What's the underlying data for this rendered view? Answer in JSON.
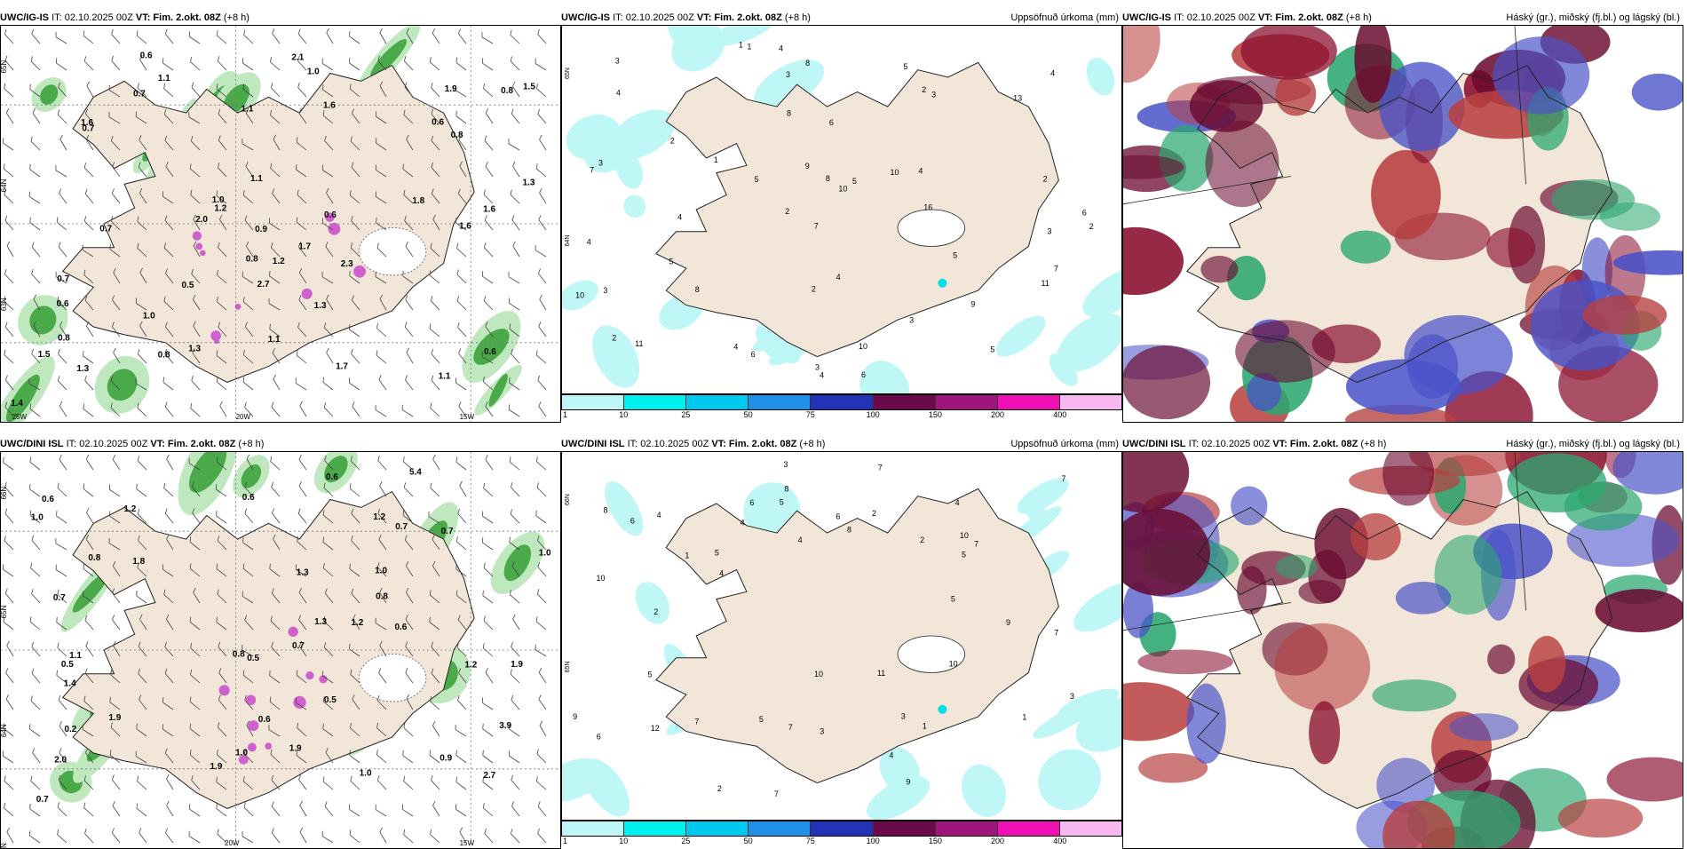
{
  "rows": [
    {
      "model": "UWC/IG-IS",
      "it_label": "IT: 02.10.2025 00Z",
      "vt_label": "VT: Fim. 2.okt. 08Z",
      "lead": "(+8 h)",
      "wind_panel": {
        "lat_labels": [
          "65N",
          "64N",
          "63N"
        ],
        "lon_labels": [
          "25W",
          "20W",
          "15W"
        ],
        "values": [
          "0.7",
          "1.6",
          "1.2",
          "1.1",
          "0.6",
          "0.7",
          "0.6",
          "0.8",
          "0.5",
          "0.8",
          "0.6",
          "1.1",
          "1.6",
          "1.5",
          "1.3",
          "1.0",
          "1.3",
          "0.8",
          "2.1",
          "1.7",
          "0.7",
          "1.0",
          "1.8",
          "1.1",
          "0.8",
          "0.6",
          "1.0",
          "1.5",
          "2.0",
          "1.9",
          "1.7",
          "2.7",
          "1.1",
          "0.6",
          "1.3",
          "1.6",
          "1.2",
          "1.4",
          "0.9",
          "2.3",
          "0.8",
          "1.1",
          "1.3",
          "0.7",
          "1.6"
        ]
      },
      "precip_panel": {
        "title": "Uppsöfnuð úrkoma (mm)",
        "values": [
          "5",
          "3",
          "8",
          "10",
          "2",
          "6",
          "5",
          "1",
          "2",
          "3",
          "2",
          "4",
          "9",
          "10",
          "5",
          "11",
          "16",
          "7",
          "3",
          "2",
          "4",
          "5",
          "6",
          "3",
          "8",
          "2",
          "4",
          "9",
          "10",
          "11",
          "3",
          "4",
          "2",
          "3",
          "4",
          "1",
          "6",
          "7",
          "5",
          "8",
          "4",
          "10",
          "13",
          "5",
          "3",
          "4",
          "6",
          "2",
          "1",
          "3",
          "7",
          "4",
          "8",
          "4"
        ]
      },
      "cloud_panel": {
        "title": "Háský (gr.), miðský (fj.bl.) og lágský (bl.)"
      }
    },
    {
      "model": "UWC/DINI ISL",
      "it_label": "IT: 02.10.2025 00Z",
      "vt_label": "VT: Fim. 2.okt. 08Z",
      "lead": "(+8 h)",
      "wind_panel": {
        "lat_labels": [
          "66N",
          "65N",
          "64N",
          "63N"
        ],
        "lon_labels": [
          "20W",
          "15W"
        ],
        "values": [
          "5.4",
          "1.8",
          "1.0",
          "1.2",
          "0.7",
          "0.6",
          "0.7",
          "1.9",
          "2.0",
          "1.9",
          "1.4",
          "0.2",
          "1.0",
          "1.0",
          "1.1",
          "0.5",
          "1.9",
          "0.5",
          "1.3",
          "2.7",
          "0.6",
          "0.7",
          "0.6",
          "0.8",
          "0.6",
          "0.5",
          "0.7",
          "0.9",
          "0.6",
          "0.8",
          "1.0",
          "0.7",
          "1.2",
          "1.9",
          "1.3",
          "3.9",
          "1.0",
          "1.2",
          "1.2",
          "0.8"
        ]
      },
      "precip_panel": {
        "title": "Uppsöfnuð úrkoma (mm)",
        "values": [
          "7",
          "8",
          "10",
          "8",
          "5",
          "4",
          "3",
          "2",
          "6",
          "5",
          "7",
          "9",
          "10",
          "11",
          "4",
          "7",
          "3",
          "2",
          "4",
          "1",
          "3",
          "2",
          "5",
          "10",
          "6",
          "12",
          "10",
          "4",
          "3",
          "1",
          "7",
          "6",
          "5",
          "7",
          "9",
          "4",
          "7",
          "7",
          "5",
          "2",
          "1",
          "6",
          "5",
          "8",
          "9",
          "4"
        ]
      },
      "cloud_panel": {
        "title": "Háský (gr.), miðský (fj.bl.) og lágský (bl.)"
      }
    }
  ],
  "legend": {
    "ticks": [
      "1",
      "10",
      "25",
      "50",
      "75",
      "100",
      "150",
      "200",
      "400"
    ],
    "colors": [
      "#bff7f7",
      "#00f0f0",
      "#00c8ee",
      "#1e90e8",
      "#2233b8",
      "#6a0a4a",
      "#a0157a",
      "#f00fb4",
      "#f7b8f0"
    ]
  },
  "colors": {
    "land": "#f2e6d8",
    "precip_light": "#bff7f7",
    "wind_green": "#3a9a3a",
    "cloud_high": "#8a1030",
    "cloud_mid": "#2ba870",
    "cloud_low": "#4a52c8"
  }
}
